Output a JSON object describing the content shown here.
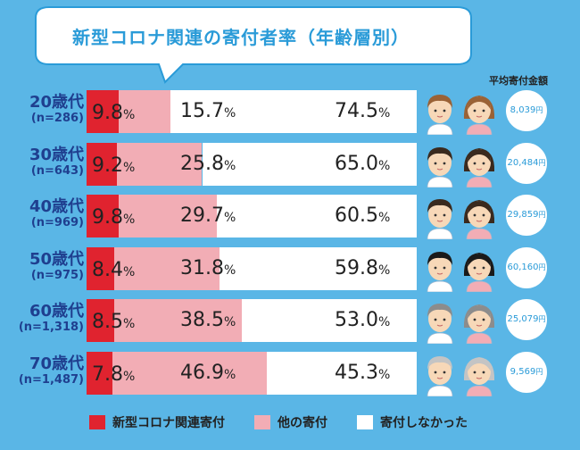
{
  "title": "新型コロナ関連の寄付者率（年齢層別）",
  "avg_amount_label": "平均寄付金額",
  "legend": [
    {
      "label": "新型コロナ関連寄付",
      "color": "#e0232f"
    },
    {
      "label": "他の寄付",
      "color": "#f2adb5"
    },
    {
      "label": "寄付しなかった",
      "color": "#ffffff"
    }
  ],
  "colors": {
    "background": "#5ab6e6",
    "title": "#2a9bd8",
    "label": "#1f3f8f",
    "covid": "#e0232f",
    "other": "#f2adb5",
    "none": "#ffffff"
  },
  "chart_data": {
    "type": "bar",
    "orientation": "horizontal",
    "stacked": true,
    "unit": "%",
    "categories": [
      "20歳代",
      "30歳代",
      "40歳代",
      "50歳代",
      "60歳代",
      "70歳代"
    ],
    "sample_sizes": [
      "(n=286)",
      "(n=643)",
      "(n=969)",
      "(n=975)",
      "(n=1,318)",
      "(n=1,487)"
    ],
    "series": [
      {
        "name": "新型コロナ関連寄付",
        "values": [
          9.8,
          9.2,
          9.8,
          8.4,
          8.5,
          7.8
        ]
      },
      {
        "name": "他の寄付",
        "values": [
          15.7,
          25.8,
          29.7,
          31.8,
          38.5,
          46.9
        ]
      },
      {
        "name": "寄付しなかった",
        "values": [
          74.5,
          65.0,
          60.5,
          59.8,
          53.0,
          45.3
        ]
      }
    ],
    "value_labels": [
      [
        "9.8",
        "15.7",
        "74.5"
      ],
      [
        "9.2",
        "25.8",
        "65.0"
      ],
      [
        "9.8",
        "29.7",
        "60.5"
      ],
      [
        "8.4",
        "31.8",
        "59.8"
      ],
      [
        "8.5",
        "38.5",
        "53.0"
      ],
      [
        "7.8",
        "46.9",
        "45.3"
      ]
    ],
    "average_donation": [
      {
        "amount": "8,039",
        "unit": "円"
      },
      {
        "amount": "20,484",
        "unit": "円"
      },
      {
        "amount": "29,859",
        "unit": "円"
      },
      {
        "amount": "60,160",
        "unit": "円"
      },
      {
        "amount": "25,079",
        "unit": "円"
      },
      {
        "amount": "9,569",
        "unit": "円"
      }
    ],
    "hair": [
      "brown",
      "dark",
      "dark",
      "black",
      "gray",
      "lightgray"
    ]
  }
}
